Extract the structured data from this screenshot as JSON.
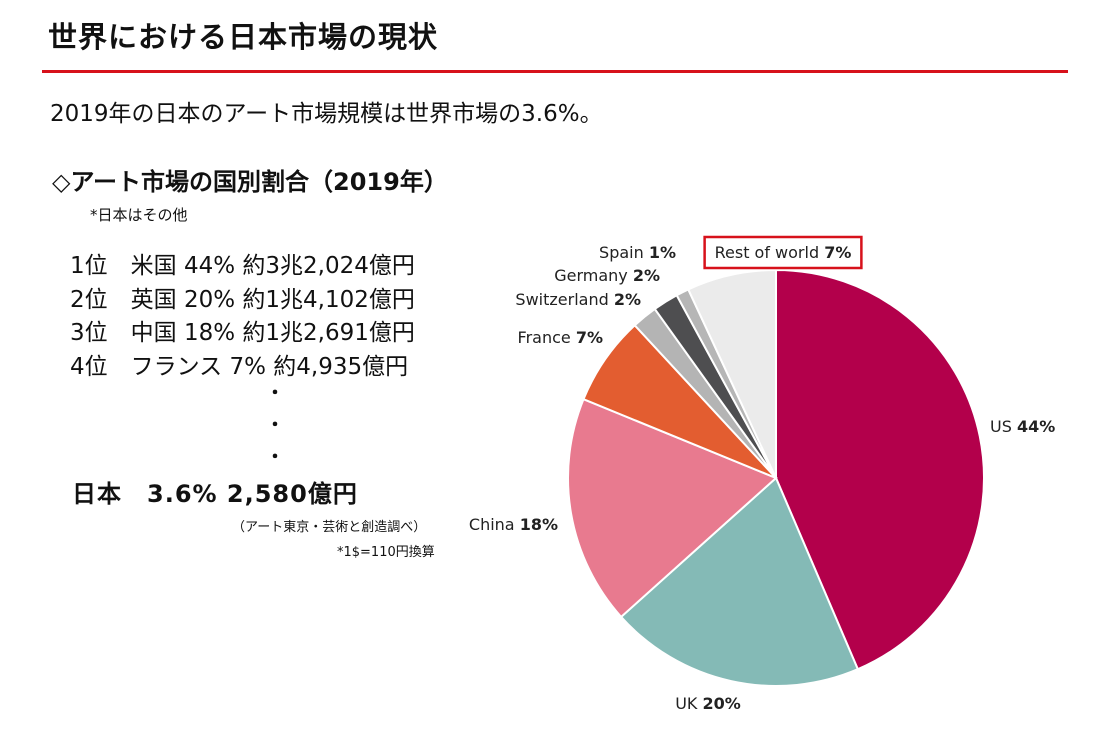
{
  "header": {
    "title": "世界における日本市場の現状"
  },
  "summary": "2019年の日本のアート市場規模は世界市場の3.6%。",
  "section": {
    "heading": "◇アート市場の国別割合（2019年）",
    "note": "*日本はその他"
  },
  "ranking": [
    "1位　米国 44% 約3兆2,024億円",
    "2位　英国 20% 約1兆4,102億円",
    "3位　中国 18% 約1兆2,691億円",
    "4位　フランス 7% 約4,935億円"
  ],
  "ellipsis": [
    "・",
    "・",
    "・"
  ],
  "japan_line": "日本　3.6% 2,580億円",
  "source": "（アート東京・芸術と創造調べ）",
  "exchange_note": "*1$=110円換算",
  "chart_data": {
    "type": "pie",
    "title": "",
    "slices": [
      {
        "label": "US",
        "value": 44,
        "display": "44%",
        "color": "#b3004b"
      },
      {
        "label": "UK",
        "value": 20,
        "display": "20%",
        "color": "#84bab6"
      },
      {
        "label": "China",
        "value": 18,
        "display": "18%",
        "color": "#e87a8f"
      },
      {
        "label": "France",
        "value": 7,
        "display": "7%",
        "color": "#e35d30"
      },
      {
        "label": "Switzerland",
        "value": 2,
        "display": "2%",
        "color": "#b4b4b4"
      },
      {
        "label": "Germany",
        "value": 2,
        "display": "2%",
        "color": "#4e4e50"
      },
      {
        "label": "Spain",
        "value": 1,
        "display": "1%",
        "color": "#b6b6b6"
      },
      {
        "label": "Rest of world",
        "value": 7,
        "display": "7%",
        "color": "#ebebeb"
      }
    ],
    "start": "12 o'clock",
    "direction": "clockwise",
    "highlighted_label": "Rest of world",
    "highlight_color": "#d7111b"
  }
}
